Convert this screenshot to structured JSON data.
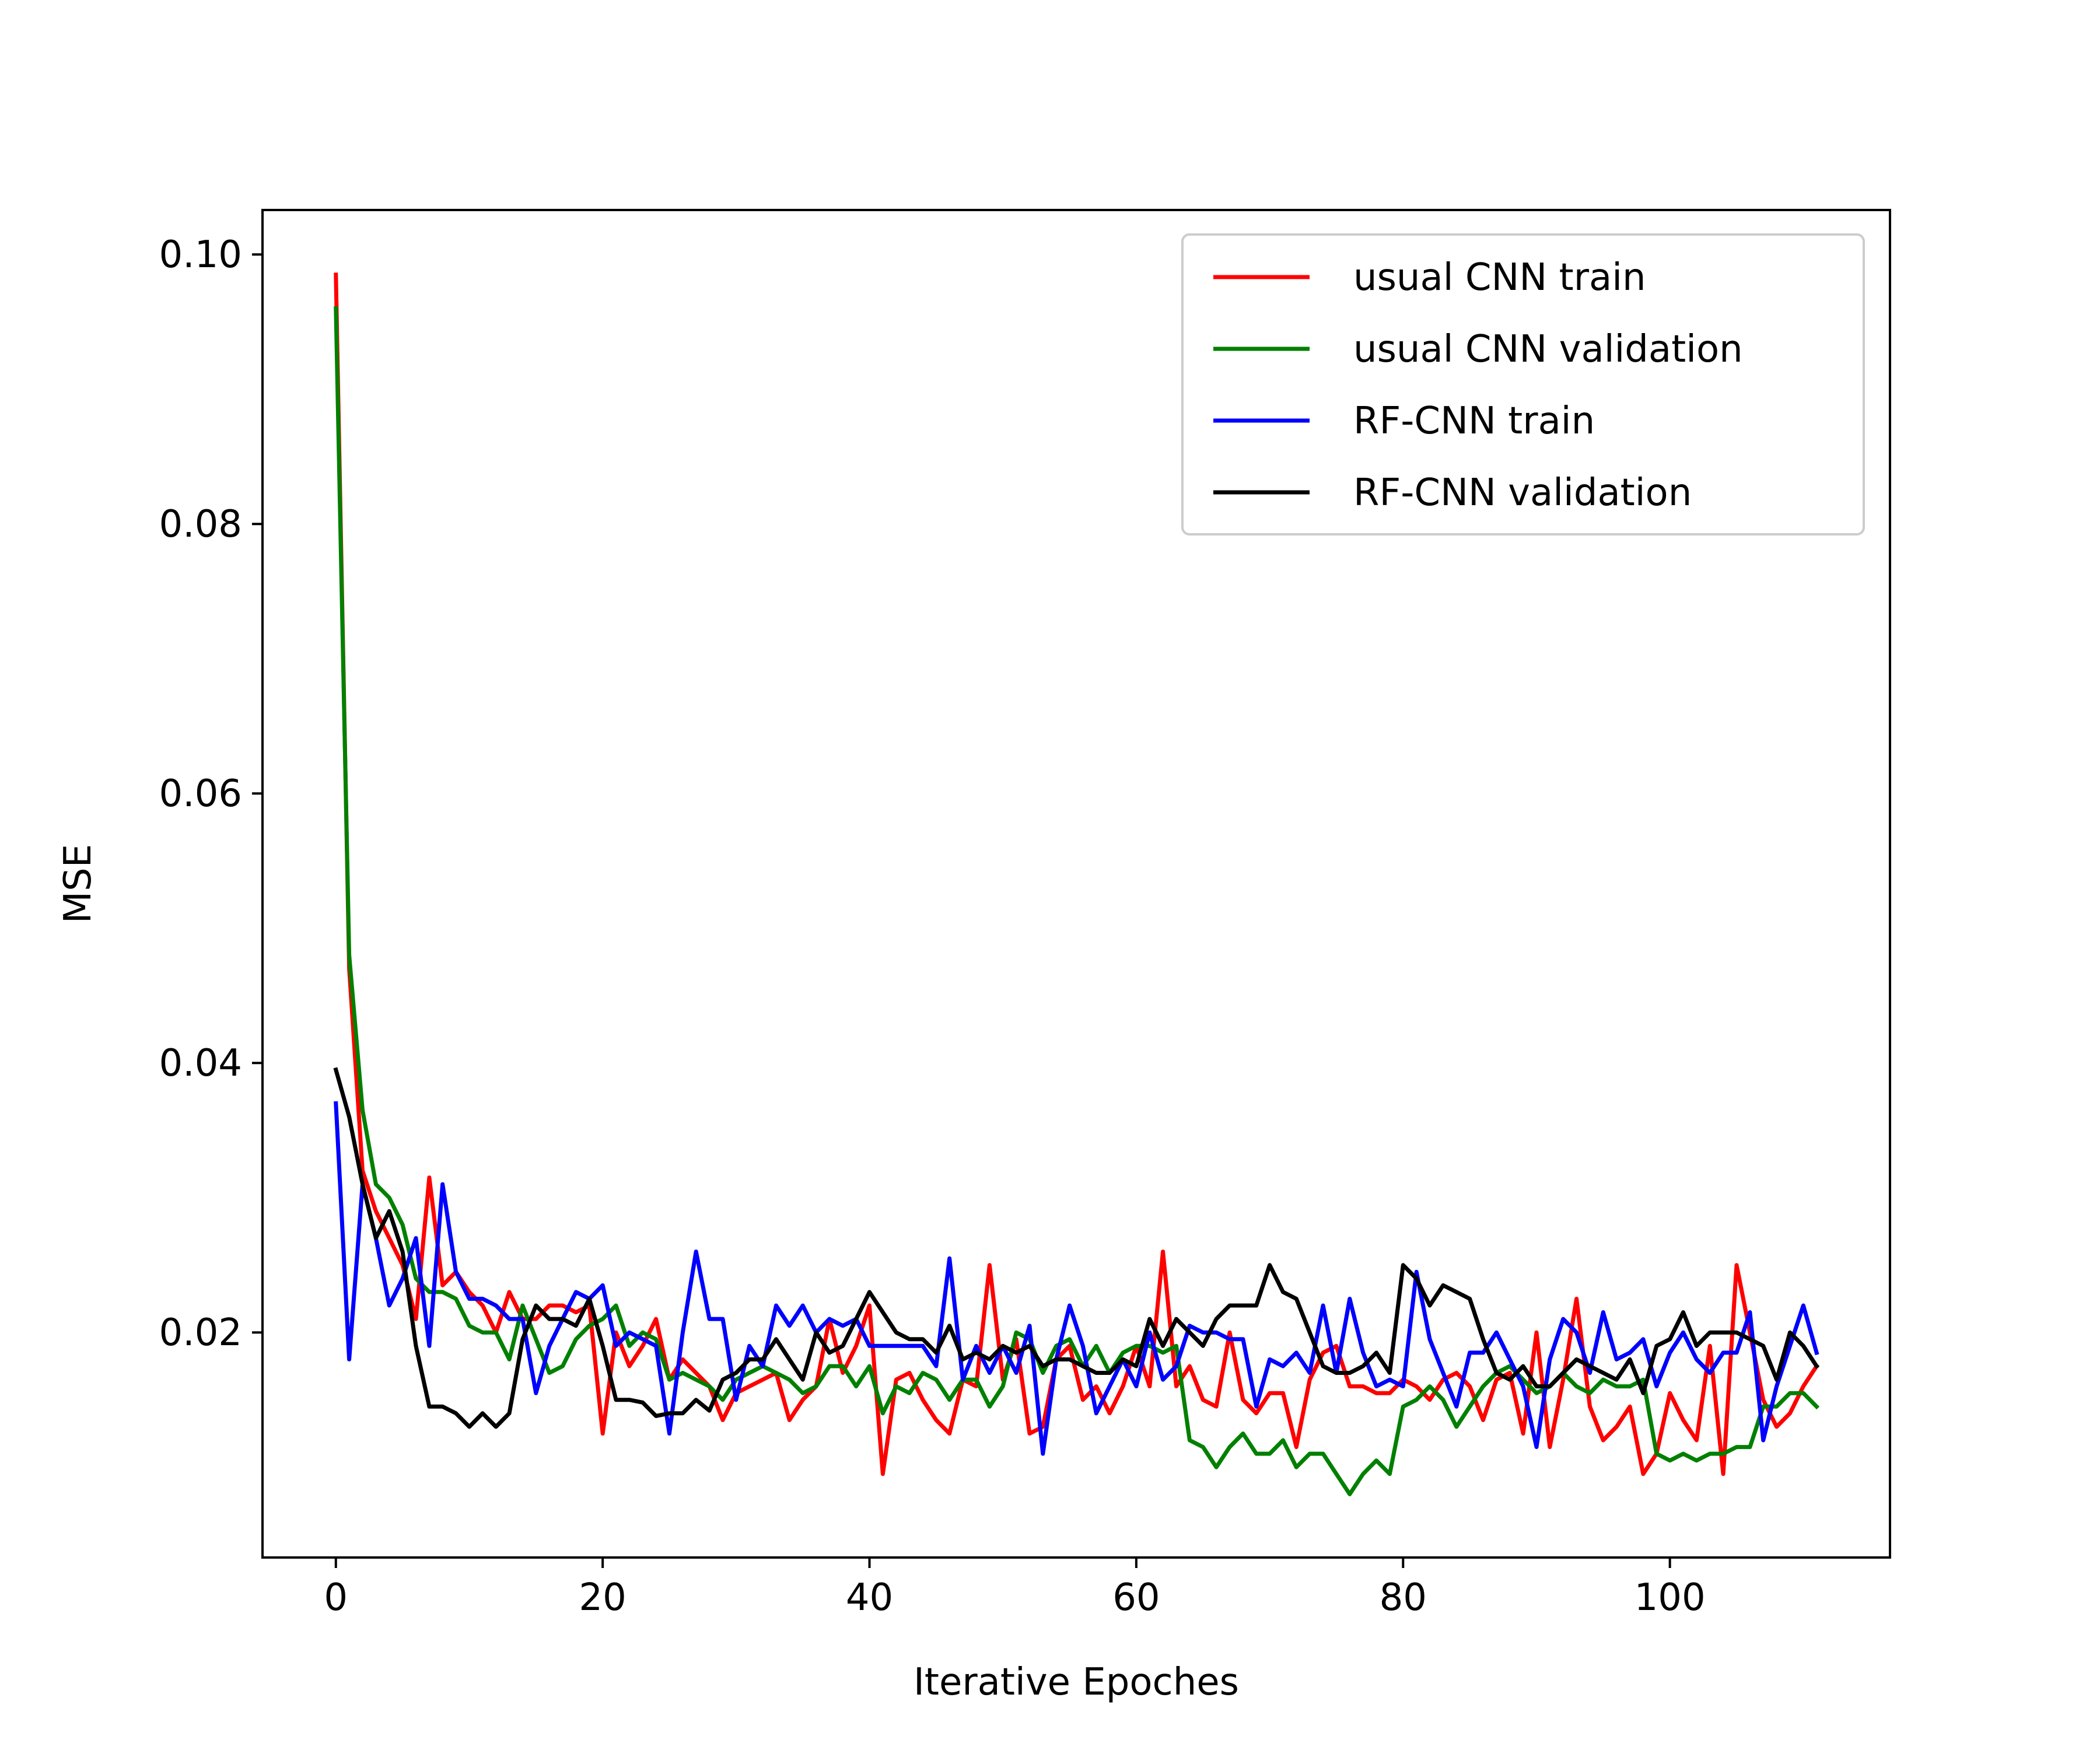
{
  "chart_data": {
    "type": "line",
    "title": "",
    "xlabel": "Iterative Epoches",
    "ylabel": "MSE",
    "xlim": [
      -5.5,
      116.5
    ],
    "ylim": [
      0.0033,
      0.1033
    ],
    "xticks": [
      0,
      20,
      40,
      60,
      80,
      100
    ],
    "xtick_labels": [
      "0",
      "20",
      "40",
      "60",
      "80",
      "100"
    ],
    "yticks": [
      0.02,
      0.04,
      0.06,
      0.08,
      0.1
    ],
    "ytick_labels": [
      "0.02",
      "0.04",
      "0.06",
      "0.08",
      "0.10"
    ],
    "grid": false,
    "legend_position": "top-right",
    "series": [
      {
        "name": "usual CNN train",
        "color": "#ff0000",
        "values": [
          0.0985,
          0.047,
          0.032,
          0.029,
          0.027,
          0.025,
          0.021,
          0.0315,
          0.0235,
          0.0245,
          0.023,
          0.022,
          0.02,
          0.023,
          0.021,
          0.021,
          0.022,
          0.022,
          0.0215,
          0.022,
          0.0125,
          0.02,
          0.0175,
          0.019,
          0.021,
          0.0165,
          0.018,
          0.017,
          0.016,
          0.0135,
          0.0155,
          0.016,
          0.0165,
          0.017,
          0.0135,
          0.015,
          0.016,
          0.021,
          0.017,
          0.019,
          0.022,
          0.0095,
          0.0165,
          0.017,
          0.015,
          0.0135,
          0.0125,
          0.0165,
          0.016,
          0.025,
          0.0165,
          0.0195,
          0.0125,
          0.013,
          0.018,
          0.019,
          0.015,
          0.016,
          0.014,
          0.016,
          0.019,
          0.016,
          0.026,
          0.016,
          0.0175,
          0.015,
          0.0145,
          0.02,
          0.015,
          0.014,
          0.0155,
          0.0155,
          0.0115,
          0.0165,
          0.0185,
          0.019,
          0.016,
          0.016,
          0.0155,
          0.0155,
          0.0165,
          0.016,
          0.015,
          0.0165,
          0.017,
          0.016,
          0.0135,
          0.0165,
          0.017,
          0.0125,
          0.02,
          0.0115,
          0.0165,
          0.0225,
          0.0145,
          0.012,
          0.013,
          0.0145,
          0.0095,
          0.011,
          0.0155,
          0.0135,
          0.012,
          0.019,
          0.0095,
          0.025,
          0.02,
          0.015,
          0.013,
          0.014,
          0.016,
          0.0175
        ]
      },
      {
        "name": "usual CNN validation",
        "color": "#008000",
        "values": [
          0.096,
          0.048,
          0.0365,
          0.031,
          0.03,
          0.028,
          0.024,
          0.023,
          0.023,
          0.0225,
          0.0205,
          0.02,
          0.02,
          0.018,
          0.022,
          0.0195,
          0.017,
          0.0175,
          0.0195,
          0.0205,
          0.021,
          0.022,
          0.019,
          0.02,
          0.0195,
          0.0165,
          0.017,
          0.0165,
          0.016,
          0.015,
          0.0165,
          0.017,
          0.0175,
          0.017,
          0.0165,
          0.0155,
          0.016,
          0.0175,
          0.0175,
          0.016,
          0.0175,
          0.014,
          0.016,
          0.0155,
          0.017,
          0.0165,
          0.015,
          0.0165,
          0.0165,
          0.0145,
          0.016,
          0.02,
          0.0195,
          0.017,
          0.019,
          0.0195,
          0.0175,
          0.019,
          0.017,
          0.0185,
          0.019,
          0.019,
          0.0185,
          0.019,
          0.012,
          0.0115,
          0.01,
          0.0115,
          0.0125,
          0.011,
          0.011,
          0.012,
          0.01,
          0.011,
          0.011,
          0.0095,
          0.008,
          0.0095,
          0.0105,
          0.0095,
          0.0145,
          0.015,
          0.016,
          0.015,
          0.013,
          0.0145,
          0.016,
          0.017,
          0.0175,
          0.0165,
          0.0155,
          0.016,
          0.017,
          0.016,
          0.0155,
          0.0165,
          0.016,
          0.016,
          0.0165,
          0.011,
          0.0105,
          0.011,
          0.0105,
          0.011,
          0.011,
          0.0115,
          0.0115,
          0.0145,
          0.0145,
          0.0155,
          0.0155,
          0.0145
        ]
      },
      {
        "name": "RF-CNN train",
        "color": "#0000ff",
        "values": [
          0.037,
          0.018,
          0.031,
          0.027,
          0.022,
          0.024,
          0.027,
          0.019,
          0.031,
          0.0245,
          0.0225,
          0.0225,
          0.022,
          0.021,
          0.021,
          0.0155,
          0.019,
          0.021,
          0.023,
          0.0225,
          0.0235,
          0.019,
          0.02,
          0.0195,
          0.019,
          0.0125,
          0.02,
          0.026,
          0.021,
          0.021,
          0.015,
          0.019,
          0.0175,
          0.022,
          0.0205,
          0.022,
          0.02,
          0.021,
          0.0205,
          0.021,
          0.019,
          0.019,
          0.019,
          0.019,
          0.019,
          0.0175,
          0.0255,
          0.0165,
          0.019,
          0.017,
          0.019,
          0.017,
          0.0205,
          0.011,
          0.018,
          0.022,
          0.019,
          0.014,
          0.016,
          0.018,
          0.016,
          0.02,
          0.0165,
          0.0175,
          0.0205,
          0.02,
          0.02,
          0.0195,
          0.0195,
          0.0145,
          0.018,
          0.0175,
          0.0185,
          0.017,
          0.022,
          0.017,
          0.0225,
          0.0185,
          0.016,
          0.0165,
          0.016,
          0.0245,
          0.0195,
          0.017,
          0.0145,
          0.0185,
          0.0185,
          0.02,
          0.018,
          0.016,
          0.0115,
          0.018,
          0.021,
          0.02,
          0.017,
          0.0215,
          0.018,
          0.0185,
          0.0195,
          0.016,
          0.0185,
          0.02,
          0.018,
          0.017,
          0.0185,
          0.0185,
          0.0215,
          0.012,
          0.016,
          0.019,
          0.022,
          0.0185
        ]
      },
      {
        "name": "RF-CNN validation",
        "color": "#000000",
        "values": [
          0.0395,
          0.036,
          0.031,
          0.027,
          0.029,
          0.026,
          0.019,
          0.0145,
          0.0145,
          0.014,
          0.013,
          0.014,
          0.013,
          0.014,
          0.0195,
          0.022,
          0.021,
          0.021,
          0.0205,
          0.0225,
          0.019,
          0.015,
          0.015,
          0.0148,
          0.0138,
          0.014,
          0.014,
          0.015,
          0.0142,
          0.0165,
          0.017,
          0.018,
          0.018,
          0.0195,
          0.018,
          0.0165,
          0.02,
          0.0185,
          0.019,
          0.021,
          0.023,
          0.0215,
          0.02,
          0.0195,
          0.0195,
          0.0185,
          0.0205,
          0.018,
          0.0185,
          0.018,
          0.019,
          0.0185,
          0.019,
          0.0175,
          0.018,
          0.018,
          0.0175,
          0.017,
          0.017,
          0.018,
          0.0175,
          0.021,
          0.019,
          0.021,
          0.02,
          0.019,
          0.021,
          0.022,
          0.022,
          0.022,
          0.025,
          0.023,
          0.0225,
          0.02,
          0.0175,
          0.017,
          0.017,
          0.0175,
          0.0185,
          0.017,
          0.025,
          0.024,
          0.022,
          0.0235,
          0.023,
          0.0225,
          0.0195,
          0.017,
          0.0165,
          0.0175,
          0.016,
          0.016,
          0.017,
          0.018,
          0.0175,
          0.017,
          0.0165,
          0.018,
          0.0155,
          0.019,
          0.0195,
          0.0215,
          0.019,
          0.02,
          0.02,
          0.02,
          0.0195,
          0.019,
          0.0165,
          0.02,
          0.019,
          0.0175
        ]
      }
    ]
  }
}
